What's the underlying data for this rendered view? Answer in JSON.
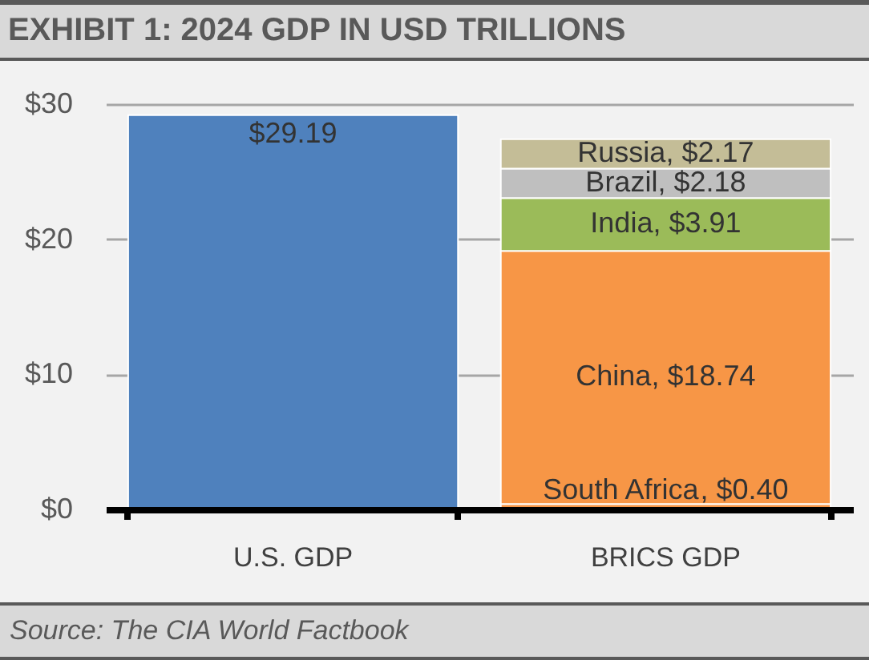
{
  "chart_data": {
    "type": "bar",
    "title": "EXHIBIT 1: 2024 GDP IN USD TRILLIONS",
    "categories": [
      "U.S. GDP",
      "BRICS GDP"
    ],
    "stacked": true,
    "series": [
      {
        "color": "#4f81bd",
        "values": [
          29.19,
          null
        ],
        "value_labels": [
          "$29.19",
          null
        ]
      },
      {
        "name": "South Africa",
        "color": "#f79646",
        "values": [
          null,
          0.4
        ],
        "value_labels": [
          null,
          ", $0.40"
        ]
      },
      {
        "name": "China",
        "color": "#f79646",
        "values": [
          null,
          18.74
        ],
        "value_labels": [
          null,
          ", $18.74"
        ]
      },
      {
        "name": "India",
        "color": "#9bbb59",
        "values": [
          null,
          3.91
        ],
        "value_labels": [
          null,
          ", $3.91"
        ]
      },
      {
        "name": "Brazil",
        "color": "#bfbfbf",
        "values": [
          null,
          2.18
        ],
        "value_labels": [
          null,
          ", $2.18"
        ]
      },
      {
        "name": "Russia",
        "color": "#c4bd97",
        "values": [
          null,
          2.17
        ],
        "value_labels": [
          null,
          ", $2.17"
        ]
      }
    ],
    "ylim": [
      0,
      30
    ],
    "yticks": [
      {
        "value": 0,
        "label": "$0"
      },
      {
        "value": 10,
        "label": "$10"
      },
      {
        "value": 20,
        "label": "$20"
      },
      {
        "value": 30,
        "label": "$30"
      }
    ],
    "grid": "y",
    "annotations": [
      "Source: The CIA World Factbook"
    ]
  }
}
